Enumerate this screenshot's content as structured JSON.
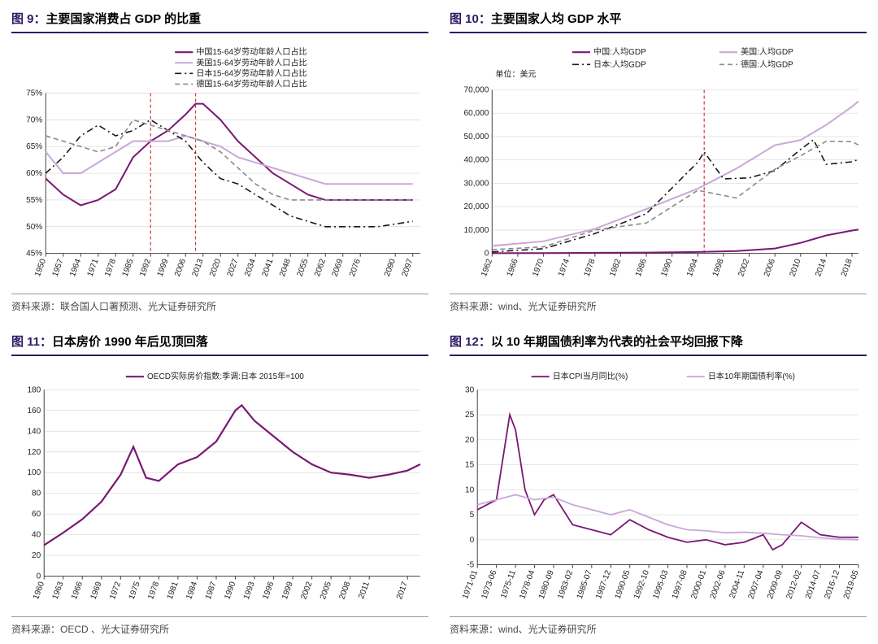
{
  "colors": {
    "accent": "#2d1a66",
    "border": "#444444",
    "grid": "#d8d8d8",
    "series_dark": "#7b1874",
    "series_light": "#c9a8d8",
    "series_black": "#1a1a1a",
    "series_gray": "#8a8a8a",
    "ref_line": "#d53a3a"
  },
  "typography": {
    "title_fontsize": 15,
    "axis_fontsize": 10,
    "legend_fontsize": 10
  },
  "chart9": {
    "title_num": "图 9：",
    "title_text": "主要国家消费占 GDP 的比重",
    "type": "line",
    "legend": [
      {
        "label": "中国15-64岁劳动年龄人口占比",
        "color": "#7b1874",
        "style": "solid",
        "width": 2
      },
      {
        "label": "美国15-64岁劳动年龄人口占比",
        "color": "#c9a8d8",
        "style": "solid",
        "width": 2
      },
      {
        "label": "日本15-64岁劳动年龄人口占比",
        "color": "#1a1a1a",
        "style": "dashdot",
        "width": 1.6
      },
      {
        "label": "德国15-64岁劳动年龄人口占比",
        "color": "#8a8a8a",
        "style": "dash",
        "width": 1.6
      }
    ],
    "y": {
      "min": 45,
      "max": 75,
      "step": 5,
      "suffix": "%"
    },
    "x": {
      "labels": [
        "1950",
        "1957",
        "1964",
        "1971",
        "1978",
        "1985",
        "1992",
        "1999",
        "2006",
        "2013",
        "2020",
        "2027",
        "2034",
        "2041",
        "2048",
        "2055",
        "2062",
        "2069",
        "2076",
        "2090",
        "2097"
      ],
      "min": 1950,
      "max": 2100
    },
    "ref_lines": [
      1992,
      2010
    ],
    "series": {
      "china": [
        [
          1950,
          59
        ],
        [
          1957,
          56
        ],
        [
          1964,
          54
        ],
        [
          1971,
          55
        ],
        [
          1978,
          57
        ],
        [
          1985,
          63
        ],
        [
          1992,
          66
        ],
        [
          1999,
          68
        ],
        [
          2006,
          71
        ],
        [
          2010,
          73
        ],
        [
          2013,
          73
        ],
        [
          2020,
          70
        ],
        [
          2027,
          66
        ],
        [
          2034,
          63
        ],
        [
          2041,
          60
        ],
        [
          2048,
          58
        ],
        [
          2055,
          56
        ],
        [
          2062,
          55
        ],
        [
          2069,
          55
        ],
        [
          2083,
          55
        ],
        [
          2097,
          55
        ]
      ],
      "usa": [
        [
          1950,
          64
        ],
        [
          1957,
          60
        ],
        [
          1964,
          60
        ],
        [
          1971,
          62
        ],
        [
          1978,
          64
        ],
        [
          1985,
          66
        ],
        [
          1992,
          66
        ],
        [
          1999,
          66
        ],
        [
          2006,
          67
        ],
        [
          2013,
          66
        ],
        [
          2020,
          65
        ],
        [
          2027,
          63
        ],
        [
          2034,
          62
        ],
        [
          2041,
          61
        ],
        [
          2048,
          60
        ],
        [
          2055,
          59
        ],
        [
          2062,
          58
        ],
        [
          2069,
          58
        ],
        [
          2083,
          58
        ],
        [
          2097,
          58
        ]
      ],
      "japan": [
        [
          1950,
          60
        ],
        [
          1957,
          63
        ],
        [
          1964,
          67
        ],
        [
          1971,
          69
        ],
        [
          1978,
          67
        ],
        [
          1985,
          68
        ],
        [
          1992,
          70
        ],
        [
          1999,
          68
        ],
        [
          2006,
          66
        ],
        [
          2013,
          62
        ],
        [
          2020,
          59
        ],
        [
          2027,
          58
        ],
        [
          2034,
          56
        ],
        [
          2041,
          54
        ],
        [
          2048,
          52
        ],
        [
          2055,
          51
        ],
        [
          2062,
          50
        ],
        [
          2069,
          50
        ],
        [
          2083,
          50
        ],
        [
          2097,
          51
        ]
      ],
      "germany": [
        [
          1950,
          67
        ],
        [
          1957,
          66
        ],
        [
          1964,
          65
        ],
        [
          1971,
          64
        ],
        [
          1978,
          65
        ],
        [
          1985,
          70
        ],
        [
          1992,
          69
        ],
        [
          1999,
          68
        ],
        [
          2006,
          67
        ],
        [
          2013,
          66
        ],
        [
          2020,
          64
        ],
        [
          2027,
          61
        ],
        [
          2034,
          58
        ],
        [
          2041,
          56
        ],
        [
          2048,
          55
        ],
        [
          2055,
          55
        ],
        [
          2062,
          55
        ],
        [
          2069,
          55
        ],
        [
          2083,
          55
        ],
        [
          2097,
          55
        ]
      ]
    },
    "source": "资料来源：联合国人口署预测、光大证券研究所"
  },
  "chart10": {
    "title_num": "图 10：",
    "title_text": "主要国家人均 GDP 水平",
    "type": "line",
    "unit_label": "单位：美元",
    "legend": [
      {
        "label": "中国:人均GDP",
        "color": "#7b1874",
        "style": "solid",
        "width": 2
      },
      {
        "label": "美国:人均GDP",
        "color": "#c9a8d8",
        "style": "solid",
        "width": 2
      },
      {
        "label": "日本:人均GDP",
        "color": "#1a1a1a",
        "style": "dashdot",
        "width": 1.6
      },
      {
        "label": "德国:人均GDP",
        "color": "#8a8a8a",
        "style": "dash",
        "width": 1.6
      }
    ],
    "y": {
      "min": 0,
      "max": 70000,
      "step": 10000
    },
    "x": {
      "labels": [
        "1962",
        "1966",
        "1970",
        "1974",
        "1978",
        "1982",
        "1986",
        "1990",
        "1994",
        "1998",
        "2002",
        "2006",
        "2010",
        "2014",
        "2018"
      ],
      "min": 1962,
      "max": 2019
    },
    "ref_lines": [
      1995
    ],
    "series": {
      "china": [
        [
          1962,
          100
        ],
        [
          1970,
          150
        ],
        [
          1978,
          250
        ],
        [
          1986,
          350
        ],
        [
          1994,
          600
        ],
        [
          2000,
          1000
        ],
        [
          2006,
          2100
        ],
        [
          2010,
          4500
        ],
        [
          2014,
          7700
        ],
        [
          2018,
          9800
        ],
        [
          2019,
          10200
        ]
      ],
      "usa": [
        [
          1962,
          3200
        ],
        [
          1970,
          5200
        ],
        [
          1978,
          10500
        ],
        [
          1986,
          19000
        ],
        [
          1994,
          27700
        ],
        [
          2000,
          36300
        ],
        [
          2006,
          46300
        ],
        [
          2010,
          48500
        ],
        [
          2014,
          55000
        ],
        [
          2018,
          62800
        ],
        [
          2019,
          65100
        ]
      ],
      "japan": [
        [
          1962,
          630
        ],
        [
          1970,
          2000
        ],
        [
          1978,
          8500
        ],
        [
          1986,
          17000
        ],
        [
          1994,
          39000
        ],
        [
          1995,
          43400
        ],
        [
          1998,
          31900
        ],
        [
          2002,
          32300
        ],
        [
          2006,
          35400
        ],
        [
          2010,
          44500
        ],
        [
          2012,
          48600
        ],
        [
          2014,
          38100
        ],
        [
          2018,
          39200
        ],
        [
          2019,
          40200
        ]
      ],
      "germany": [
        [
          1962,
          1600
        ],
        [
          1970,
          2800
        ],
        [
          1978,
          10000
        ],
        [
          1986,
          13000
        ],
        [
          1994,
          27000
        ],
        [
          2000,
          23700
        ],
        [
          2006,
          36000
        ],
        [
          2010,
          41800
        ],
        [
          2014,
          48000
        ],
        [
          2018,
          47800
        ],
        [
          2019,
          46400
        ]
      ]
    },
    "source": "资料来源：wind、光大证券研究所"
  },
  "chart11": {
    "title_num": "图 11：",
    "title_text": "日本房价 1990 年后见顶回落",
    "type": "line",
    "legend": [
      {
        "label": "OECD实际房价指数:季调:日本 2015年=100",
        "color": "#7b1874",
        "style": "solid",
        "width": 2.2
      }
    ],
    "y": {
      "min": 0,
      "max": 180,
      "step": 20
    },
    "x": {
      "labels": [
        "1960",
        "1963",
        "1966",
        "1969",
        "1972",
        "1975",
        "1978",
        "1981",
        "1984",
        "1987",
        "1990",
        "1993",
        "1996",
        "1999",
        "2002",
        "2005",
        "2008",
        "2011",
        "2017"
      ],
      "min": 1960,
      "max": 2019
    },
    "series": {
      "japan_house": [
        [
          1960,
          30
        ],
        [
          1963,
          42
        ],
        [
          1966,
          55
        ],
        [
          1969,
          72
        ],
        [
          1972,
          98
        ],
        [
          1974,
          125
        ],
        [
          1976,
          95
        ],
        [
          1978,
          92
        ],
        [
          1981,
          108
        ],
        [
          1984,
          115
        ],
        [
          1987,
          130
        ],
        [
          1990,
          160
        ],
        [
          1991,
          165
        ],
        [
          1993,
          150
        ],
        [
          1996,
          135
        ],
        [
          1999,
          120
        ],
        [
          2002,
          108
        ],
        [
          2005,
          100
        ],
        [
          2008,
          98
        ],
        [
          2011,
          95
        ],
        [
          2014,
          98
        ],
        [
          2017,
          102
        ],
        [
          2019,
          108
        ]
      ]
    },
    "source": "资料来源：OECD 、光大证券研究所"
  },
  "chart12": {
    "title_num": "图 12：",
    "title_text": "以 10 年期国债利率为代表的社会平均回报下降",
    "type": "line",
    "legend": [
      {
        "label": "日本CPI当月同比(%)",
        "color": "#7b1874",
        "style": "solid",
        "width": 1.8
      },
      {
        "label": "日本10年期国债利率(%)",
        "color": "#c9a8d8",
        "style": "solid",
        "width": 1.8
      }
    ],
    "y": {
      "min": -5,
      "max": 30,
      "step": 5
    },
    "x": {
      "labels": [
        "1971-01",
        "1973-06",
        "1975-11",
        "1978-04",
        "1980-09",
        "1983-02",
        "1985-07",
        "1987-12",
        "1990-05",
        "1992-10",
        "1995-03",
        "1997-08",
        "2000-01",
        "2002-06",
        "2004-11",
        "2007-04",
        "2009-09",
        "2012-02",
        "2014-07",
        "2016-12",
        "2019-05"
      ],
      "min": 0,
      "max": 20
    },
    "series": {
      "cpi": [
        [
          0,
          6
        ],
        [
          1,
          8
        ],
        [
          1.7,
          25
        ],
        [
          2,
          22
        ],
        [
          2.5,
          10
        ],
        [
          3,
          5
        ],
        [
          3.5,
          8
        ],
        [
          4,
          9
        ],
        [
          5,
          3
        ],
        [
          6,
          2
        ],
        [
          7,
          1
        ],
        [
          8,
          4
        ],
        [
          9,
          2
        ],
        [
          10,
          0.5
        ],
        [
          11,
          -0.5
        ],
        [
          12,
          0
        ],
        [
          13,
          -1
        ],
        [
          14,
          -0.5
        ],
        [
          15,
          1
        ],
        [
          15.5,
          -2
        ],
        [
          16,
          -1
        ],
        [
          17,
          3.5
        ],
        [
          18,
          1
        ],
        [
          19,
          0.5
        ],
        [
          20,
          0.5
        ]
      ],
      "jgb10": [
        [
          0,
          7
        ],
        [
          1,
          8
        ],
        [
          2,
          9
        ],
        [
          3,
          8
        ],
        [
          4,
          8.5
        ],
        [
          5,
          7
        ],
        [
          6,
          6
        ],
        [
          7,
          5
        ],
        [
          8,
          6
        ],
        [
          9,
          4.5
        ],
        [
          10,
          3
        ],
        [
          11,
          2
        ],
        [
          12,
          1.8
        ],
        [
          13,
          1.4
        ],
        [
          14,
          1.5
        ],
        [
          15,
          1.3
        ],
        [
          16,
          1
        ],
        [
          17,
          0.8
        ],
        [
          18,
          0.4
        ],
        [
          19,
          0.1
        ],
        [
          20,
          0
        ]
      ]
    },
    "source": "资料来源：wind、光大证券研究所"
  }
}
